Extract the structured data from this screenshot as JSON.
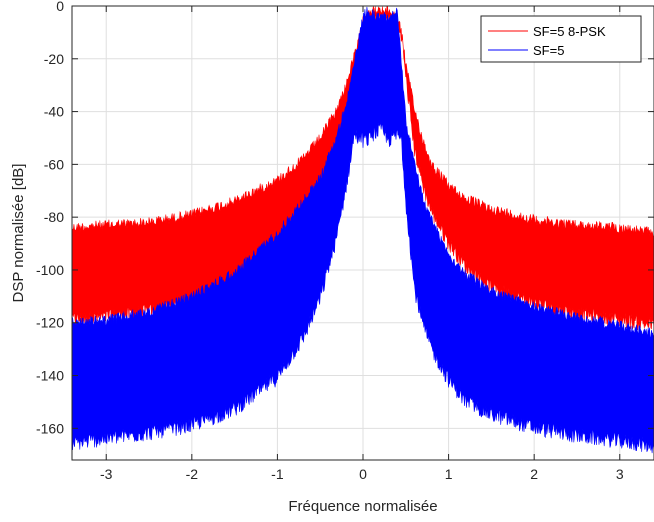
{
  "chart_data": {
    "type": "area",
    "title": "",
    "xlabel": "Fréquence normalisée",
    "ylabel": "DSP normalisée [dB]",
    "xlim": [
      -3.4,
      3.4
    ],
    "ylim": [
      -172,
      0
    ],
    "x_ticks": [
      -3,
      -2,
      -1,
      0,
      1,
      2,
      3
    ],
    "y_ticks": [
      0,
      -20,
      -40,
      -60,
      -80,
      -100,
      -120,
      -140,
      -160
    ],
    "grid": true,
    "legend_position": "top-right",
    "x": [
      -3.4,
      -3.0,
      -2.5,
      -2.0,
      -1.5,
      -1.0,
      -0.7,
      -0.5,
      -0.3,
      -0.2,
      -0.1,
      0.0,
      0.05,
      0.1,
      0.2,
      0.3,
      0.4,
      0.45,
      0.5,
      0.6,
      0.7,
      0.8,
      1.0,
      1.2,
      1.5,
      2.0,
      2.5,
      3.0,
      3.4
    ],
    "series": [
      {
        "name": "SF=5 8-PSK",
        "color": "#ff0000",
        "upper": [
          -82,
          -81,
          -80,
          -77,
          -72,
          -64,
          -56,
          -48,
          -37,
          -28,
          -17,
          -5,
          0,
          0,
          0,
          0,
          -2,
          -8,
          -20,
          -37,
          -49,
          -58,
          -66,
          -71,
          -75,
          -79,
          -81,
          -82,
          -84
        ],
        "lower": [
          -120,
          -119,
          -117,
          -113,
          -106,
          -94,
          -82,
          -72,
          -57,
          -46,
          -30,
          -8,
          -5,
          -6,
          -6,
          -6,
          -8,
          -12,
          -28,
          -55,
          -69,
          -79,
          -91,
          -100,
          -108,
          -114,
          -118,
          -120,
          -122
        ]
      },
      {
        "name": "SF=5",
        "color": "#0000ff",
        "upper": [
          -118,
          -117,
          -114,
          -108,
          -99,
          -84,
          -72,
          -63,
          -47,
          -35,
          -20,
          -2,
          0,
          -1,
          -2,
          -2,
          0,
          -20,
          -41,
          -58,
          -71,
          -79,
          -92,
          -100,
          -106,
          -112,
          -116,
          -119,
          -122
        ],
        "lower": [
          -167,
          -165,
          -163,
          -160,
          -154,
          -142,
          -127,
          -112,
          -88,
          -70,
          -50,
          -52,
          -52,
          -50,
          -48,
          -52,
          -50,
          -52,
          -75,
          -108,
          -122,
          -131,
          -143,
          -151,
          -156,
          -161,
          -164,
          -166,
          -168
        ]
      }
    ]
  }
}
